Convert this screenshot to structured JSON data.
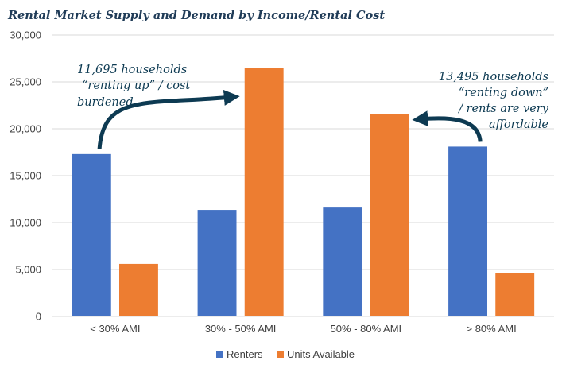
{
  "chart_data": {
    "type": "bar",
    "title": "Rental Market Supply and Demand by Income/Rental Cost",
    "categories": [
      "< 30% AMI",
      "30% - 50% AMI",
      "50% - 80% AMI",
      "> 80% AMI"
    ],
    "series": [
      {
        "name": "Renters",
        "color": "#4472c4",
        "values": [
          17300,
          11350,
          11600,
          18100
        ]
      },
      {
        "name": "Units Available",
        "color": "#ed7d31",
        "values": [
          5600,
          26450,
          21600,
          4650
        ]
      }
    ],
    "ylim": [
      0,
      30000
    ],
    "yticks": [
      "0",
      "5,000",
      "10,000",
      "15,000",
      "20,000",
      "25,000",
      "30,000"
    ],
    "grid": true,
    "legend": "bottom",
    "annotations": [
      {
        "lines": [
          "11,695 households",
          "“renting up” / cost",
          "burdened"
        ],
        "from": "< 30% AMI",
        "to": "30% - 50% AMI",
        "arrow_color": "#0d3a52"
      },
      {
        "lines": [
          "13,495 households",
          "“renting down”",
          "/ rents are very",
          "affordable"
        ],
        "from": "> 80% AMI",
        "to": "50% - 80% AMI",
        "arrow_color": "#0d3a52"
      }
    ]
  }
}
